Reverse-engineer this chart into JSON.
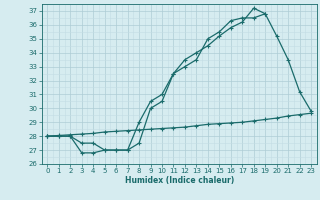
{
  "line1_x": [
    0,
    1,
    2,
    3,
    4,
    5,
    6,
    7,
    8,
    9,
    10,
    11,
    12,
    13,
    14,
    15,
    16,
    17,
    18,
    19
  ],
  "line1_y": [
    28,
    28,
    28,
    27.5,
    27.5,
    27,
    27,
    27,
    27.5,
    30,
    30.5,
    32.5,
    33.5,
    34,
    34.5,
    35.2,
    35.8,
    36.2,
    37.2,
    36.8
  ],
  "line2_x": [
    0,
    1,
    2,
    3,
    4,
    5,
    6,
    7,
    8,
    9,
    10,
    11,
    12,
    13,
    14,
    15,
    16,
    17,
    18,
    19,
    20,
    21,
    22,
    23
  ],
  "line2_y": [
    28,
    28,
    28,
    26.8,
    26.8,
    27,
    27,
    27,
    29.0,
    30.5,
    31.0,
    32.5,
    33.0,
    33.5,
    35.0,
    35.5,
    36.3,
    36.5,
    36.5,
    36.8,
    35.2,
    33.5,
    31.2,
    29.8
  ],
  "line3_x": [
    0,
    1,
    2,
    3,
    4,
    5,
    6,
    7,
    8,
    9,
    10,
    11,
    12,
    13,
    14,
    15,
    16,
    17,
    18,
    19,
    20,
    21,
    22,
    23
  ],
  "line3_y": [
    28.0,
    28.05,
    28.1,
    28.15,
    28.2,
    28.3,
    28.35,
    28.4,
    28.45,
    28.5,
    28.55,
    28.6,
    28.65,
    28.75,
    28.85,
    28.9,
    28.95,
    29.0,
    29.1,
    29.2,
    29.3,
    29.45,
    29.55,
    29.65
  ],
  "line_color": "#1a6b6b",
  "marker": "+",
  "marker_size": 3.5,
  "marker_lw": 0.8,
  "line_lw": 0.9,
  "xlim": [
    -0.5,
    23.5
  ],
  "ylim": [
    26,
    37.5
  ],
  "yticks": [
    26,
    27,
    28,
    29,
    30,
    31,
    32,
    33,
    34,
    35,
    36,
    37
  ],
  "xticks": [
    0,
    1,
    2,
    3,
    4,
    5,
    6,
    7,
    8,
    9,
    10,
    11,
    12,
    13,
    14,
    15,
    16,
    17,
    18,
    19,
    20,
    21,
    22,
    23
  ],
  "xlabel": "Humidex (Indice chaleur)",
  "bg_color": "#d6ecf0",
  "grid_major_color": "#aecdd5",
  "grid_minor_color": "#c3dde4",
  "axis_color": "#1a6b6b",
  "tick_fontsize": 5.0,
  "xlabel_fontsize": 5.5
}
